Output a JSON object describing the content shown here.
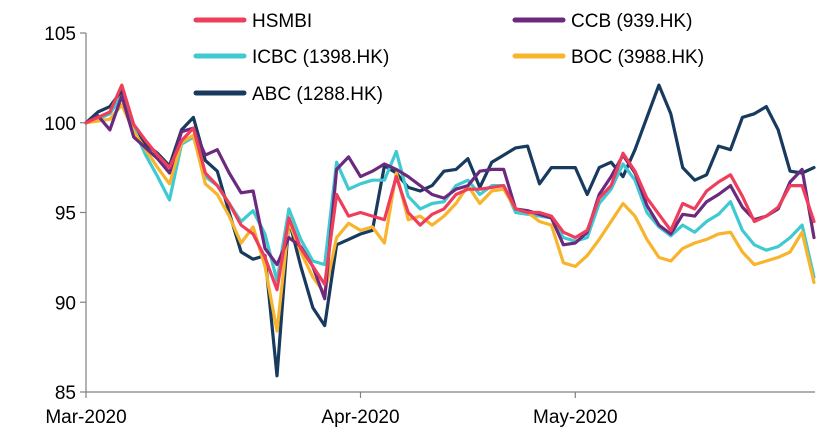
{
  "chart_data": {
    "type": "line",
    "title": "",
    "xlabel": "",
    "ylabel": "",
    "ylim": [
      85,
      105
    ],
    "yticks": [
      85,
      90,
      95,
      100,
      105
    ],
    "xticks": [
      {
        "label": "Mar-2020",
        "index": 0
      },
      {
        "label": "Apr-2020",
        "index": 23
      },
      {
        "label": "May-2020",
        "index": 41
      }
    ],
    "n_points": 62,
    "grid": false,
    "legend": "top",
    "series": [
      {
        "name": "HSMBI",
        "color": "#ef3e5b",
        "values": [
          100.0,
          100.3,
          100.6,
          102.1,
          99.9,
          99.0,
          98.2,
          97.5,
          99.0,
          99.7,
          97.2,
          96.5,
          95.5,
          94.3,
          93.8,
          92.5,
          90.7,
          94.7,
          93.0,
          92.0,
          91.0,
          96.0,
          94.8,
          95.0,
          94.8,
          94.6,
          97.0,
          95.0,
          94.3,
          94.9,
          95.2,
          96.0,
          96.3,
          96.3,
          96.4,
          96.5,
          95.2,
          95.0,
          95.0,
          94.8,
          93.9,
          93.6,
          94.0,
          95.8,
          96.5,
          98.3,
          97.3,
          95.8,
          94.9,
          94.0,
          95.5,
          95.2,
          96.2,
          96.7,
          97.1,
          95.9,
          94.5,
          94.8,
          95.3,
          96.5,
          96.5,
          94.5
        ]
      },
      {
        "name": "CCB (939.HK)",
        "color": "#6b2a7e",
        "values": [
          100.0,
          100.4,
          99.6,
          101.5,
          99.2,
          98.6,
          98.0,
          97.2,
          99.5,
          99.7,
          98.2,
          98.5,
          97.2,
          96.1,
          96.2,
          93.0,
          92.1,
          93.6,
          93.1,
          92.0,
          90.2,
          97.4,
          98.1,
          97.0,
          97.3,
          97.7,
          97.4,
          97.0,
          96.5,
          96.0,
          95.8,
          96.3,
          96.5,
          97.3,
          97.4,
          97.4,
          95.2,
          95.1,
          94.9,
          94.7,
          93.2,
          93.3,
          93.9,
          96.0,
          97.0,
          98.2,
          97.2,
          95.4,
          94.3,
          93.8,
          94.9,
          94.8,
          95.6,
          96.0,
          96.5,
          95.3,
          94.6,
          94.8,
          95.2,
          96.7,
          97.4,
          93.6
        ]
      },
      {
        "name": "ICBC (1398.HK)",
        "color": "#3fc9d0",
        "values": [
          100.0,
          100.2,
          100.5,
          101.5,
          99.7,
          98.2,
          97.0,
          95.7,
          98.8,
          99.2,
          97.0,
          96.5,
          95.5,
          94.5,
          95.1,
          93.8,
          91.2,
          95.2,
          93.5,
          92.3,
          92.1,
          97.8,
          96.3,
          96.6,
          96.8,
          96.8,
          98.4,
          95.9,
          95.2,
          95.5,
          95.6,
          96.5,
          96.8,
          96.0,
          96.5,
          96.5,
          95.0,
          94.9,
          94.8,
          94.7,
          93.6,
          93.4,
          93.6,
          95.5,
          96.3,
          97.7,
          96.8,
          95.0,
          94.2,
          93.7,
          94.3,
          93.9,
          94.5,
          94.9,
          95.6,
          94.0,
          93.2,
          92.9,
          93.1,
          93.6,
          94.3,
          91.4
        ]
      },
      {
        "name": "BOC (3988.HK)",
        "color": "#f7b42c",
        "values": [
          100.0,
          100.1,
          100.2,
          101.0,
          99.5,
          98.5,
          97.5,
          96.6,
          98.9,
          99.3,
          96.6,
          96.0,
          94.8,
          93.3,
          94.2,
          92.0,
          88.4,
          94.5,
          92.8,
          91.4,
          90.5,
          93.6,
          94.4,
          94.0,
          94.2,
          93.3,
          97.2,
          94.6,
          94.8,
          94.3,
          94.8,
          95.5,
          96.5,
          95.5,
          96.2,
          96.3,
          95.2,
          95.0,
          94.5,
          94.3,
          92.2,
          92.0,
          92.6,
          93.5,
          94.5,
          95.5,
          94.8,
          93.5,
          92.5,
          92.3,
          93.0,
          93.3,
          93.5,
          93.8,
          93.9,
          92.8,
          92.1,
          92.3,
          92.5,
          92.8,
          93.9,
          91.1
        ]
      },
      {
        "name": "ABC (1288.HK)",
        "color": "#173a5e",
        "values": [
          100.0,
          100.6,
          100.9,
          101.8,
          99.6,
          98.8,
          98.3,
          97.6,
          99.6,
          100.3,
          97.9,
          97.3,
          95.0,
          92.8,
          92.4,
          92.6,
          85.9,
          94.6,
          92.0,
          89.7,
          88.7,
          93.2,
          93.5,
          93.8,
          94.0,
          97.6,
          97.2,
          96.4,
          96.2,
          96.5,
          97.3,
          97.4,
          98.0,
          96.4,
          97.8,
          98.2,
          98.6,
          98.7,
          96.6,
          97.5,
          97.5,
          97.5,
          96.0,
          97.5,
          97.8,
          97.0,
          98.5,
          100.3,
          102.1,
          100.5,
          97.5,
          96.8,
          97.1,
          98.7,
          98.5,
          100.3,
          100.5,
          100.9,
          99.6,
          97.3,
          97.2,
          97.5
        ]
      }
    ]
  }
}
